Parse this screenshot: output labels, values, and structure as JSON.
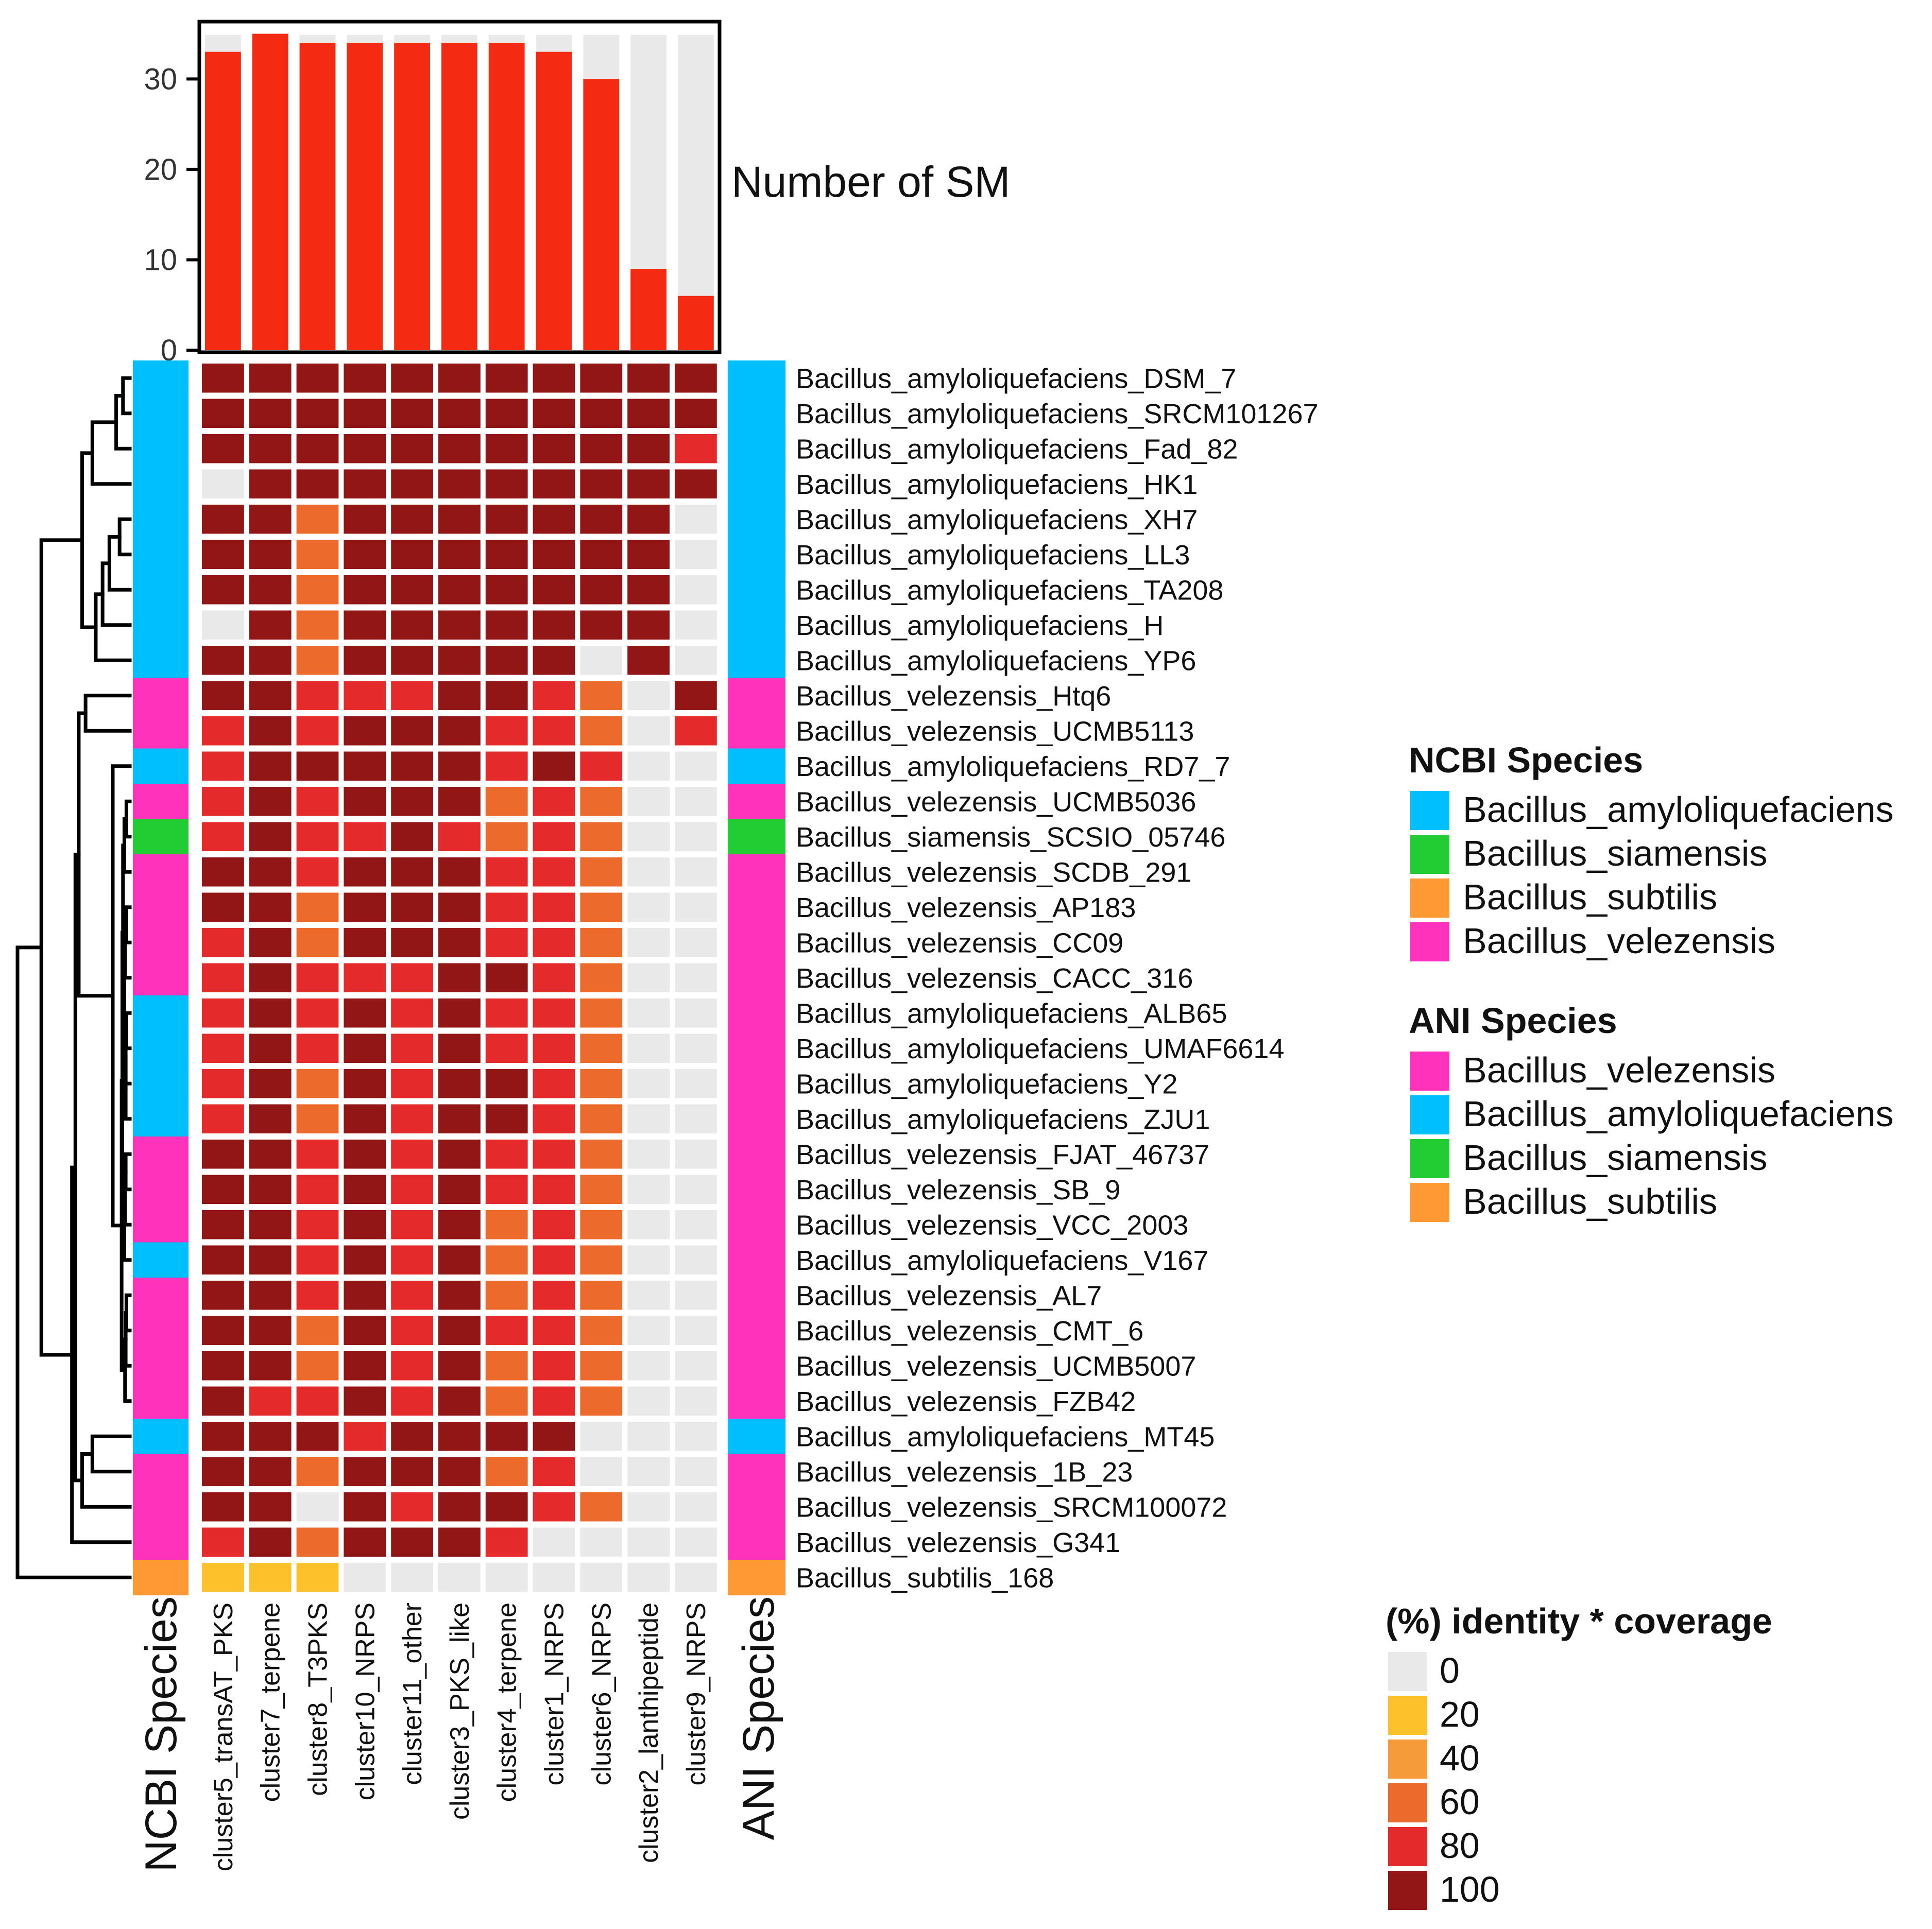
{
  "chart_data": {
    "type": "heatmap",
    "barplot": {
      "title": "Number of SM",
      "ylim": [
        0,
        36
      ],
      "yticks": [
        "0",
        "10",
        "20",
        "30"
      ],
      "values": [
        33,
        35,
        34,
        34,
        34,
        34,
        34,
        33,
        30,
        9,
        6
      ],
      "bar_color": "#f42a12",
      "background_color": "#e9e9e9"
    },
    "columns": [
      "cluster5_transAT_PKS",
      "cluster7_terpene",
      "cluster8_T3PKS",
      "cluster10_NRPS",
      "cluster11_other",
      "cluster3_PKS_like",
      "cluster4_terpene",
      "cluster1_NRPS",
      "cluster6_NRPS",
      "cluster2_lanthipeptide",
      "cluster9_NRPS"
    ],
    "rows": [
      "Bacillus_amyloliquefaciens_DSM_7",
      "Bacillus_amyloliquefaciens_SRCM101267",
      "Bacillus_amyloliquefaciens_Fad_82",
      "Bacillus_amyloliquefaciens_HK1",
      "Bacillus_amyloliquefaciens_XH7",
      "Bacillus_amyloliquefaciens_LL3",
      "Bacillus_amyloliquefaciens_TA208",
      "Bacillus_amyloliquefaciens_H",
      "Bacillus_amyloliquefaciens_YP6",
      "Bacillus_velezensis_Htq6",
      "Bacillus_velezensis_UCMB5113",
      "Bacillus_amyloliquefaciens_RD7_7",
      "Bacillus_velezensis_UCMB5036",
      "Bacillus_siamensis_SCSIO_05746",
      "Bacillus_velezensis_SCDB_291",
      "Bacillus_velezensis_AP183",
      "Bacillus_velezensis_CC09",
      "Bacillus_velezensis_CACC_316",
      "Bacillus_amyloliquefaciens_ALB65",
      "Bacillus_amyloliquefaciens_UMAF6614",
      "Bacillus_amyloliquefaciens_Y2",
      "Bacillus_amyloliquefaciens_ZJU1",
      "Bacillus_velezensis_FJAT_46737",
      "Bacillus_velezensis_SB_9",
      "Bacillus_velezensis_VCC_2003",
      "Bacillus_amyloliquefaciens_V167",
      "Bacillus_velezensis_AL7",
      "Bacillus_velezensis_CMT_6",
      "Bacillus_velezensis_UCMB5007",
      "Bacillus_velezensis_FZB42",
      "Bacillus_amyloliquefaciens_MT45",
      "Bacillus_velezensis_1B_23",
      "Bacillus_velezensis_SRCM100072",
      "Bacillus_velezensis_G341",
      "Bacillus_subtilis_168"
    ],
    "values": [
      [
        100,
        100,
        100,
        100,
        100,
        100,
        100,
        100,
        100,
        100,
        100
      ],
      [
        100,
        100,
        100,
        100,
        100,
        100,
        100,
        100,
        100,
        100,
        100
      ],
      [
        100,
        100,
        100,
        100,
        100,
        100,
        100,
        100,
        100,
        100,
        80
      ],
      [
        0,
        100,
        100,
        100,
        100,
        100,
        100,
        100,
        100,
        100,
        100
      ],
      [
        100,
        100,
        60,
        100,
        100,
        100,
        100,
        100,
        100,
        100,
        0
      ],
      [
        100,
        100,
        60,
        100,
        100,
        100,
        100,
        100,
        100,
        100,
        0
      ],
      [
        100,
        100,
        60,
        100,
        100,
        100,
        100,
        100,
        100,
        100,
        0
      ],
      [
        0,
        100,
        60,
        100,
        100,
        100,
        100,
        100,
        100,
        100,
        0
      ],
      [
        100,
        100,
        60,
        100,
        100,
        100,
        100,
        100,
        0,
        100,
        0
      ],
      [
        100,
        100,
        80,
        80,
        80,
        100,
        100,
        80,
        60,
        0,
        100
      ],
      [
        80,
        100,
        80,
        100,
        100,
        100,
        80,
        80,
        60,
        0,
        80
      ],
      [
        80,
        100,
        100,
        100,
        100,
        100,
        80,
        100,
        80,
        0,
        0
      ],
      [
        80,
        100,
        80,
        100,
        100,
        100,
        60,
        80,
        60,
        0,
        0
      ],
      [
        80,
        100,
        80,
        80,
        100,
        80,
        60,
        80,
        60,
        0,
        0
      ],
      [
        100,
        100,
        80,
        100,
        100,
        100,
        80,
        80,
        60,
        0,
        0
      ],
      [
        100,
        100,
        60,
        100,
        100,
        100,
        80,
        80,
        60,
        0,
        0
      ],
      [
        80,
        100,
        60,
        100,
        100,
        100,
        80,
        80,
        60,
        0,
        0
      ],
      [
        80,
        100,
        80,
        80,
        80,
        100,
        100,
        80,
        60,
        0,
        0
      ],
      [
        80,
        100,
        80,
        100,
        80,
        100,
        80,
        80,
        60,
        0,
        0
      ],
      [
        80,
        100,
        80,
        100,
        80,
        100,
        80,
        80,
        60,
        0,
        0
      ],
      [
        80,
        100,
        60,
        100,
        80,
        100,
        100,
        80,
        60,
        0,
        0
      ],
      [
        80,
        100,
        60,
        100,
        80,
        100,
        100,
        80,
        60,
        0,
        0
      ],
      [
        100,
        100,
        80,
        100,
        80,
        100,
        80,
        80,
        60,
        0,
        0
      ],
      [
        100,
        100,
        80,
        100,
        80,
        100,
        80,
        80,
        60,
        0,
        0
      ],
      [
        100,
        100,
        80,
        100,
        80,
        100,
        60,
        80,
        60,
        0,
        0
      ],
      [
        100,
        100,
        80,
        100,
        80,
        100,
        60,
        80,
        60,
        0,
        0
      ],
      [
        100,
        100,
        80,
        100,
        80,
        100,
        60,
        80,
        60,
        0,
        0
      ],
      [
        100,
        100,
        60,
        100,
        80,
        100,
        80,
        80,
        60,
        0,
        0
      ],
      [
        100,
        100,
        60,
        100,
        80,
        100,
        60,
        80,
        60,
        0,
        0
      ],
      [
        100,
        80,
        80,
        100,
        80,
        100,
        60,
        80,
        60,
        0,
        0
      ],
      [
        100,
        100,
        100,
        80,
        100,
        100,
        100,
        100,
        0,
        0,
        0
      ],
      [
        100,
        100,
        60,
        100,
        100,
        100,
        60,
        80,
        0,
        0,
        0
      ],
      [
        100,
        100,
        0,
        100,
        80,
        100,
        100,
        80,
        60,
        0,
        0
      ],
      [
        80,
        100,
        60,
        100,
        100,
        100,
        80,
        0,
        0,
        0,
        0
      ],
      [
        20,
        20,
        20,
        0,
        0,
        0,
        0,
        0,
        0,
        0,
        0
      ]
    ],
    "ncbi_species": [
      "amy",
      "amy",
      "amy",
      "amy",
      "amy",
      "amy",
      "amy",
      "amy",
      "amy",
      "vel",
      "vel",
      "amy",
      "vel",
      "sia",
      "vel",
      "vel",
      "vel",
      "vel",
      "amy",
      "amy",
      "amy",
      "amy",
      "vel",
      "vel",
      "vel",
      "amy",
      "vel",
      "vel",
      "vel",
      "vel",
      "amy",
      "vel",
      "vel",
      "vel",
      "sub"
    ],
    "ani_species": [
      "amy",
      "amy",
      "amy",
      "amy",
      "amy",
      "amy",
      "amy",
      "amy",
      "amy",
      "vel",
      "vel",
      "amy",
      "vel",
      "sia",
      "vel",
      "vel",
      "vel",
      "vel",
      "vel",
      "vel",
      "vel",
      "vel",
      "vel",
      "vel",
      "vel",
      "vel",
      "vel",
      "vel",
      "vel",
      "vel",
      "amy",
      "vel",
      "vel",
      "vel",
      "sub"
    ],
    "species_colors": {
      "amy": "#00bfff",
      "sia": "#22cc33",
      "sub": "#ff9933",
      "vel": "#ff33bb"
    },
    "annotation_labels": {
      "left": "NCBI Species",
      "right": "ANI Species"
    },
    "legends": [
      {
        "title": "NCBI Species",
        "entries": [
          {
            "key": "amy",
            "label": "Bacillus_amyloliquefaciens"
          },
          {
            "key": "sia",
            "label": "Bacillus_siamensis"
          },
          {
            "key": "sub",
            "label": "Bacillus_subtilis"
          },
          {
            "key": "vel",
            "label": "Bacillus_velezensis"
          }
        ]
      },
      {
        "title": "ANI Species",
        "entries": [
          {
            "key": "vel",
            "label": "Bacillus_velezensis"
          },
          {
            "key": "amy",
            "label": "Bacillus_amyloliquefaciens"
          },
          {
            "key": "sia",
            "label": "Bacillus_siamensis"
          },
          {
            "key": "sub",
            "label": "Bacillus_subtilis"
          }
        ]
      }
    ],
    "scale": {
      "title": "(%) identity * coverage",
      "entries": [
        {
          "label": "0",
          "value": 0,
          "color": "#e9e9e9"
        },
        {
          "label": "20",
          "value": 20,
          "color": "#fdc22b"
        },
        {
          "label": "40",
          "value": 40,
          "color": "#f59b3a"
        },
        {
          "label": "60",
          "value": 60,
          "color": "#eb6a2c"
        },
        {
          "label": "80",
          "value": 80,
          "color": "#e42a2a"
        },
        {
          "label": "100",
          "value": 100,
          "color": "#921616"
        }
      ]
    },
    "dendrogram": {
      "leaf_order": "rows",
      "merges": [
        [
          [
            0,
            1
          ],
          0.1
        ],
        [
          [
            "0-1",
            2
          ],
          0.2
        ],
        [
          [
            "0-2",
            3
          ],
          0.55
        ],
        [
          [
            4,
            5
          ],
          0.15
        ],
        [
          [
            "4-5",
            6
          ],
          0.3
        ],
        [
          [
            "4-6",
            7
          ],
          0.4
        ],
        [
          [
            "4-7",
            8
          ],
          0.5
        ],
        [
          [
            "0-3",
            "4-8"
          ],
          0.7
        ],
        [
          [
            9,
            10
          ],
          0.65
        ],
        [
          [
            12,
            13
          ],
          0.05
        ],
        [
          [
            "12-13",
            14
          ],
          0.08
        ],
        [
          [
            15,
            16
          ],
          0.05
        ],
        [
          [
            "15-16",
            17
          ],
          0.07
        ],
        [
          [
            18,
            19
          ],
          0.05
        ],
        [
          [
            "18-19",
            20
          ],
          0.06
        ],
        [
          [
            "18-20",
            21
          ],
          0.06
        ],
        [
          [
            "15-17",
            "18-21"
          ],
          0.08
        ],
        [
          [
            "12-14",
            "15-21"
          ],
          0.1
        ],
        [
          [
            22,
            23
          ],
          0.06
        ],
        [
          [
            "22-23",
            24
          ],
          0.07
        ],
        [
          [
            "22-24",
            25
          ],
          0.08
        ],
        [
          [
            "12-21",
            "22-25"
          ],
          0.11
        ],
        [
          [
            26,
            27
          ],
          0.05
        ],
        [
          [
            "26-27",
            28
          ],
          0.06
        ],
        [
          [
            "26-28",
            29
          ],
          0.07
        ],
        [
          [
            "12-25",
            "26-29"
          ],
          0.12
        ],
        [
          [
            11,
            "12-29"
          ],
          0.25
        ],
        [
          [
            "9-10",
            "11-29"
          ],
          0.75
        ],
        [
          [
            30,
            31
          ],
          0.55
        ],
        [
          [
            "30-31",
            32
          ],
          0.7
        ],
        [
          [
            "9-29",
            "30-32"
          ],
          0.8
        ],
        [
          [
            "9-32",
            33
          ],
          0.85
        ],
        [
          [
            "0-8",
            "9-33"
          ],
          1.3
        ],
        [
          [
            "0-33",
            34
          ],
          1.65
        ]
      ]
    }
  }
}
